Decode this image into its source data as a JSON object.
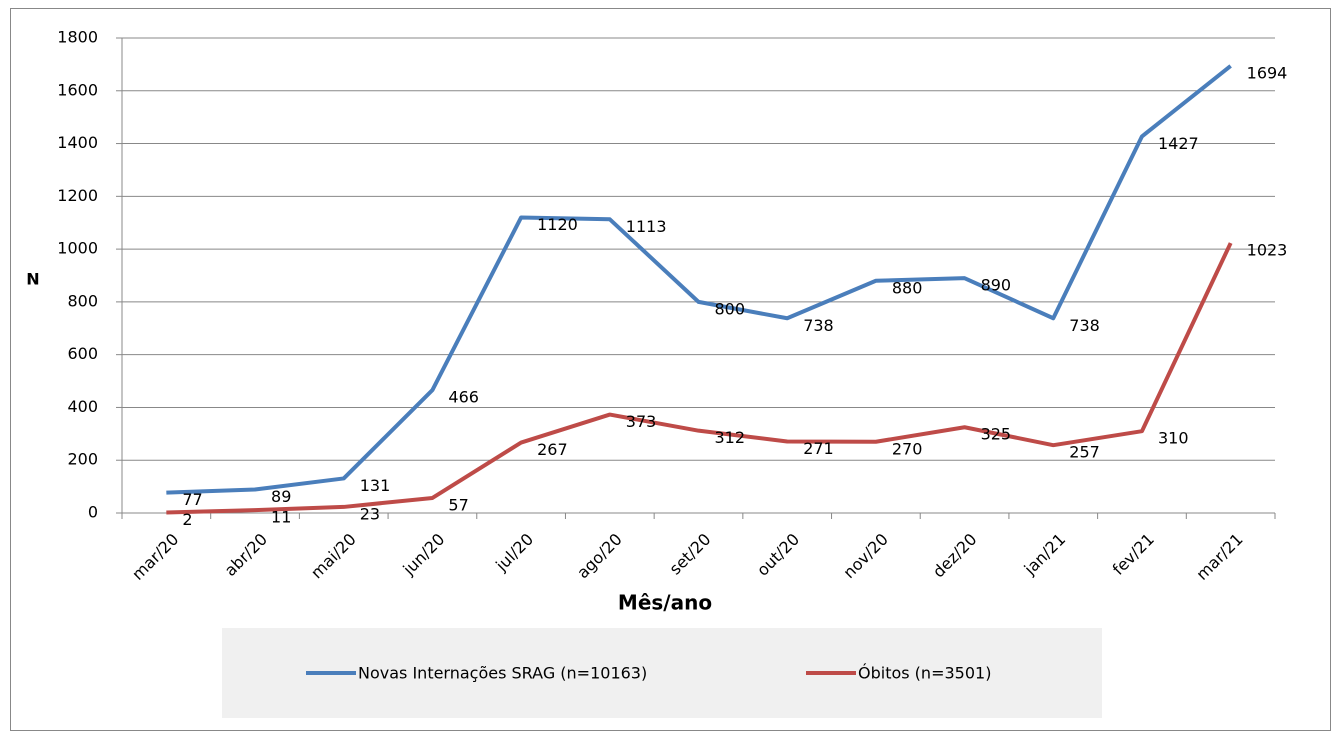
{
  "chart_data": {
    "type": "line",
    "y_label": "N",
    "x_label": "Mês/ano",
    "categories": [
      "mar/20",
      "abr/20",
      "mai/20",
      "jun/20",
      "jul/20",
      "ago/20",
      "set/20",
      "out/20",
      "nov/20",
      "dez/20",
      "jan/21",
      "fev/21",
      "mar/21"
    ],
    "series": [
      {
        "name": "Novas Internações SRAG (n=10163)",
        "color": "#4a7ebb",
        "values": [
          77,
          89,
          131,
          466,
          1120,
          1113,
          800,
          738,
          880,
          890,
          738,
          1427,
          1694
        ]
      },
      {
        "name": "Óbitos (n=3501)",
        "color": "#be4b48",
        "values": [
          2,
          11,
          23,
          57,
          267,
          373,
          312,
          271,
          270,
          325,
          257,
          310,
          1023
        ]
      }
    ],
    "ylim": [
      0,
      1800
    ],
    "yticks": [
      0,
      200,
      400,
      600,
      800,
      1000,
      1200,
      1400,
      1600,
      1800
    ],
    "grid": true,
    "legend": "bottom"
  }
}
